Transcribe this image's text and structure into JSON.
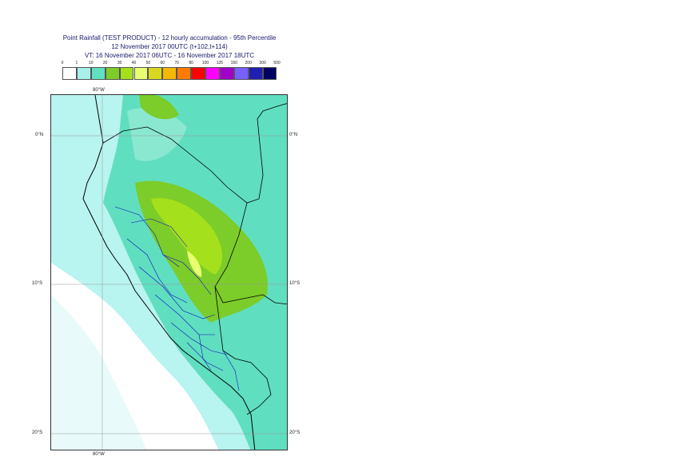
{
  "title": {
    "line1": "Point Rainfall (TEST PRODUCT) - 12 hourly accumulation - 95th Percentile",
    "line2": "12 November 2017 00UTC (t+102,t+114)",
    "line3": "VT: 16 November 2017 06UTC - 16 November 2017 18UTC"
  },
  "legend": {
    "thresholds": [
      "0",
      "1",
      "10",
      "20",
      "30",
      "40",
      "50",
      "60",
      "70",
      "80",
      "100",
      "125",
      "150",
      "200",
      "300",
      "500"
    ],
    "colors": [
      "#ffffff",
      "#a8f0ea",
      "#5fe0c0",
      "#7ccc2a",
      "#a4e01c",
      "#e8ff70",
      "#d8d820",
      "#f5b800",
      "#ff7a00",
      "#ff0000",
      "#ff00ff",
      "#a000c8",
      "#7860ff",
      "#2020b0",
      "#000060"
    ]
  },
  "map": {
    "lat_labels": {
      "north": "0°N",
      "ten_south": "10°S",
      "twenty_south": "20°S"
    },
    "lon_labels": {
      "top": "80°W",
      "bottom": "80°W"
    }
  }
}
